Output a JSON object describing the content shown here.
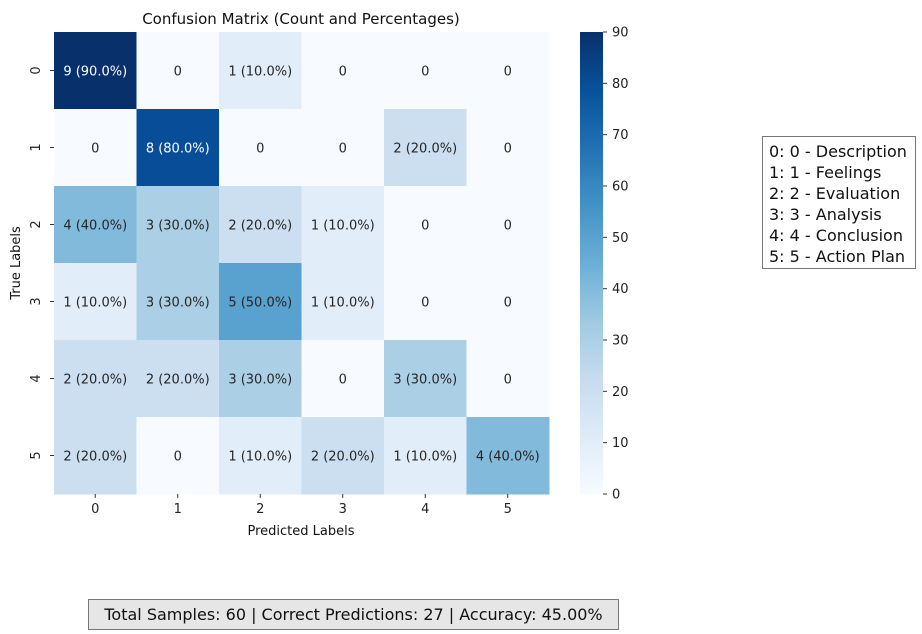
{
  "chart_data": {
    "type": "heatmap",
    "title": "Confusion Matrix (Count and Percentages)",
    "xlabel": "Predicted Labels",
    "ylabel": "True Labels",
    "x_categories": [
      "0",
      "1",
      "2",
      "3",
      "4",
      "5"
    ],
    "y_categories": [
      "0",
      "1",
      "2",
      "3",
      "4",
      "5"
    ],
    "percent_matrix": [
      [
        90,
        0,
        10,
        0,
        0,
        0
      ],
      [
        0,
        80,
        0,
        0,
        20,
        0
      ],
      [
        40,
        30,
        20,
        10,
        0,
        0
      ],
      [
        10,
        30,
        50,
        10,
        0,
        0
      ],
      [
        20,
        20,
        30,
        0,
        30,
        0
      ],
      [
        20,
        0,
        10,
        20,
        10,
        40
      ]
    ],
    "cell_labels": [
      [
        "9 (90.0%)",
        "0",
        "1 (10.0%)",
        "0",
        "0",
        "0"
      ],
      [
        "0",
        "8 (80.0%)",
        "0",
        "0",
        "2 (20.0%)",
        "0"
      ],
      [
        "4 (40.0%)",
        "3 (30.0%)",
        "2 (20.0%)",
        "1 (10.0%)",
        "0",
        "0"
      ],
      [
        "1 (10.0%)",
        "3 (30.0%)",
        "5 (50.0%)",
        "1 (10.0%)",
        "0",
        "0"
      ],
      [
        "2 (20.0%)",
        "2 (20.0%)",
        "3 (30.0%)",
        "0",
        "3 (30.0%)",
        "0"
      ],
      [
        "2 (20.0%)",
        "0",
        "1 (10.0%)",
        "2 (20.0%)",
        "1 (10.0%)",
        "4 (40.0%)"
      ]
    ],
    "colorbar": {
      "colormap": "Blues",
      "vmin": 0,
      "vmax": 90,
      "ticks": [
        "0",
        "10",
        "20",
        "30",
        "40",
        "50",
        "60",
        "70",
        "80",
        "90"
      ]
    },
    "legend": {
      "placement": "right",
      "entries": [
        "0: 0 - Description",
        "1: 1 - Feelings",
        "2: 2 - Evaluation",
        "3: 3 - Analysis",
        "4: 4 - Conclusion",
        "5: 5 - Action Plan"
      ]
    },
    "summary": "Total Samples: 60 | Correct Predictions: 27 | Accuracy: 45.00%"
  }
}
